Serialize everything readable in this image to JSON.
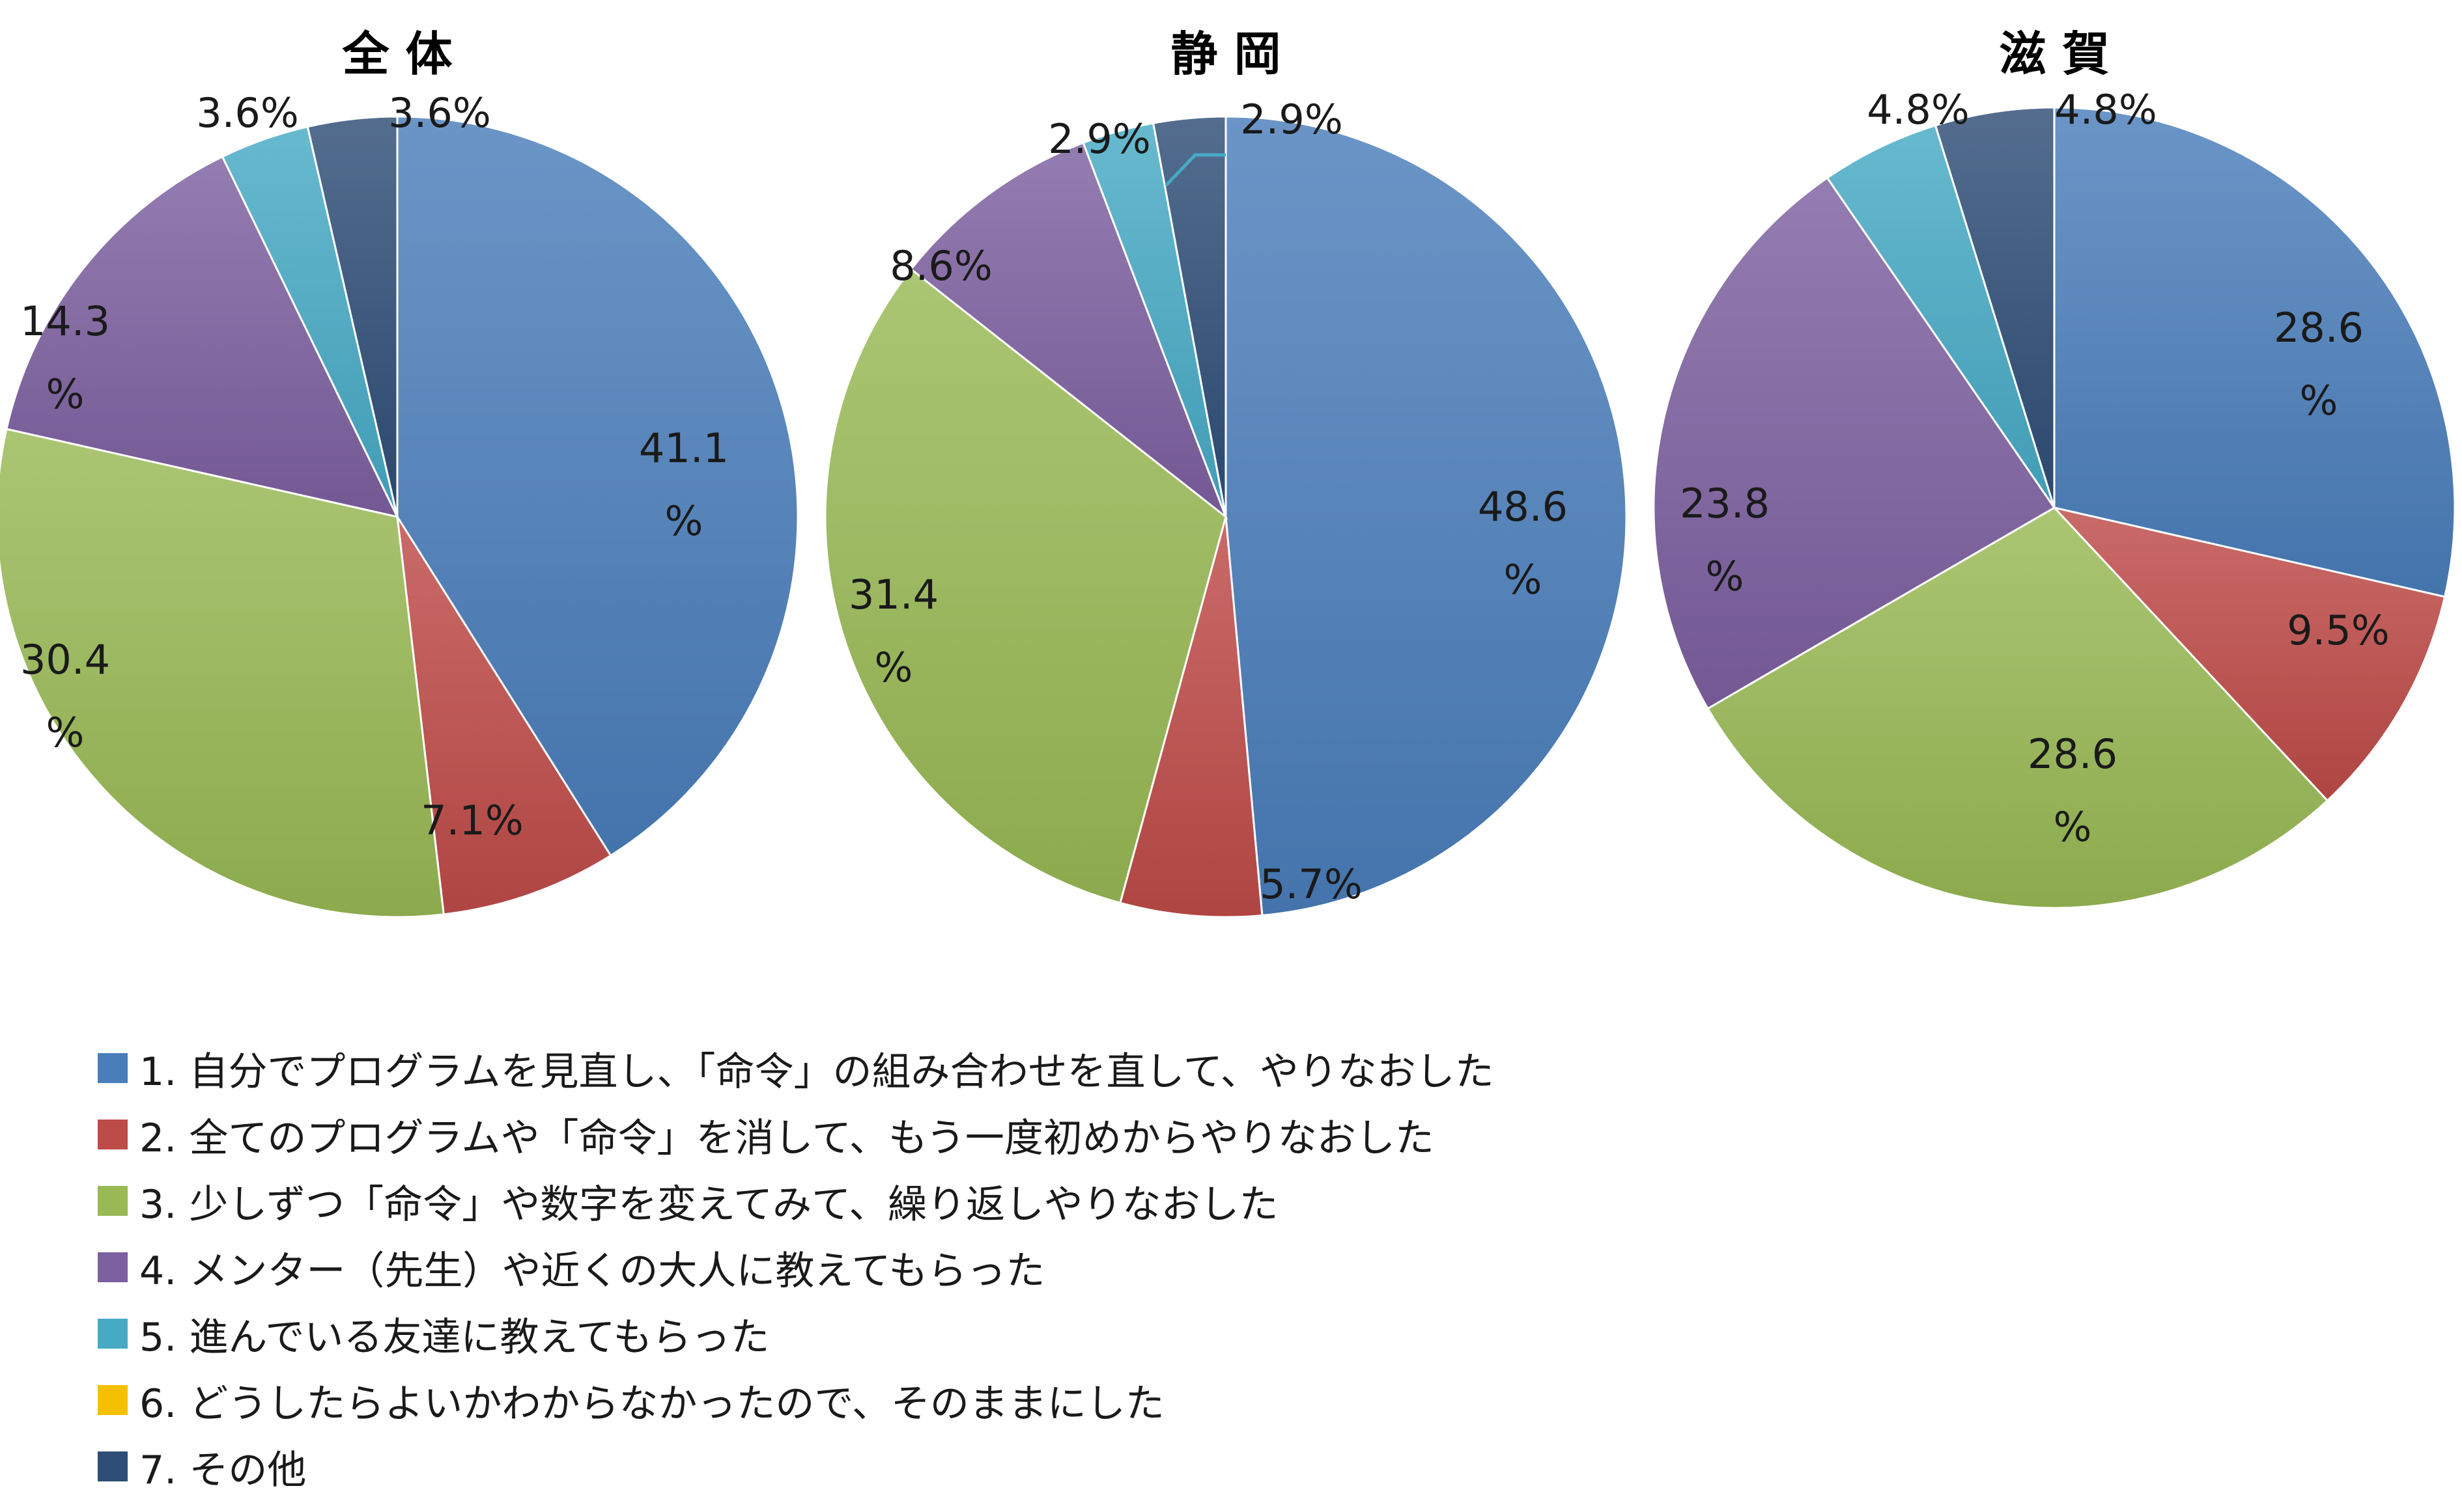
{
  "legend": {
    "items": [
      {
        "label": "1. 自分でプログラムを見直し、「命令」の組み合わせを直して、やりなおした",
        "color": "#4a7ebb"
      },
      {
        "label": "2. 全てのプログラムや「命令」を消して、もう一度初めからやりなおした",
        "color": "#be4b48"
      },
      {
        "label": "3. 少しずつ「命令」や数字を変えてみて、繰り返しやりなおした",
        "color": "#98b954"
      },
      {
        "label": "4. メンター（先生）や近くの大人に教えてもらった",
        "color": "#7d60a0"
      },
      {
        "label": "5. 進んでいる友達に教えてもらった",
        "color": "#46aac5"
      },
      {
        "label": "6. どうしたらよいかわからなかったので、そのままにした",
        "color": "#f6c000"
      },
      {
        "label": "7. その他",
        "color": "#2e4d77"
      }
    ]
  },
  "chart_data": [
    {
      "type": "pie",
      "title": "全 体",
      "categories": [
        "1",
        "2",
        "3",
        "4",
        "5",
        "6",
        "7"
      ],
      "values": [
        41.1,
        7.1,
        30.4,
        14.3,
        3.6,
        0,
        3.6
      ],
      "data_labels": [
        "41.1%",
        "7.1%",
        "30.4%",
        "14.3%",
        "3.6%",
        "",
        "3.6%"
      ]
    },
    {
      "type": "pie",
      "title": "静 岡",
      "categories": [
        "1",
        "2",
        "3",
        "4",
        "5",
        "6",
        "7"
      ],
      "values": [
        48.6,
        5.7,
        31.4,
        8.6,
        2.9,
        0,
        2.9
      ],
      "data_labels": [
        "48.6%",
        "5.7%",
        "31.4%",
        "8.6%",
        "2.9%",
        "",
        "2.9%"
      ]
    },
    {
      "type": "pie",
      "title": "滋 賀",
      "categories": [
        "1",
        "2",
        "3",
        "4",
        "5",
        "6",
        "7"
      ],
      "values": [
        28.6,
        9.5,
        28.6,
        23.8,
        4.8,
        0,
        4.8
      ],
      "data_labels": [
        "28.6%",
        "9.5%",
        "28.6%",
        "23.8%",
        "4.8%",
        "",
        "4.8%"
      ]
    }
  ]
}
